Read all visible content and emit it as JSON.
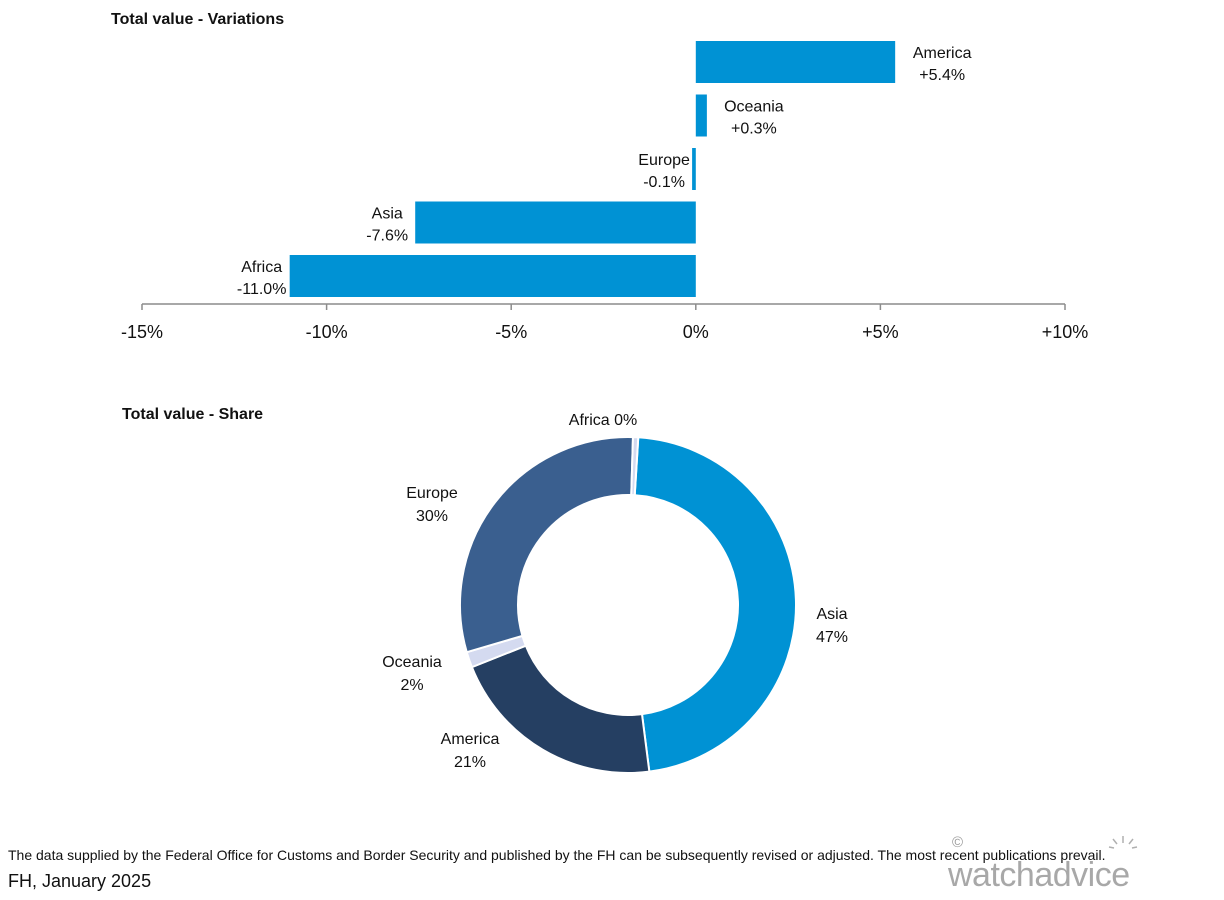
{
  "chart_data": [
    {
      "type": "bar",
      "orientation": "horizontal",
      "title": "Total value - Variations",
      "categories": [
        "America",
        "Oceania",
        "Europe",
        "Asia",
        "Africa"
      ],
      "values": [
        5.4,
        0.3,
        -0.1,
        -7.6,
        -11.0
      ],
      "value_labels": [
        "+5.4%",
        "+0.3%",
        "-0.1%",
        "-7.6%",
        "-11.0%"
      ],
      "xlim": [
        -15,
        10
      ],
      "x_ticks": [
        -15,
        -10,
        -5,
        0,
        5,
        10
      ],
      "x_tick_labels": [
        "-15%",
        "-10%",
        "-5%",
        "0%",
        "+5%",
        "+10%"
      ],
      "grid": false,
      "legend": "none",
      "color": "#0092D4"
    },
    {
      "type": "pie",
      "style": "donut",
      "title": "Total value - Share",
      "slices": [
        {
          "label": "Asia",
          "value": 47,
          "value_label": "47%",
          "color": "#0092D4"
        },
        {
          "label": "America",
          "value": 21,
          "value_label": "21%",
          "color": "#253F62"
        },
        {
          "label": "Oceania",
          "value": 1.5,
          "value_label": "2%",
          "color": "#D4DAF0"
        },
        {
          "label": "Europe",
          "value": 30,
          "value_label": "30%",
          "color": "#3A5F8F"
        },
        {
          "label": "Africa",
          "value": 0.5,
          "value_label": "0%",
          "color": "#D4DAF0"
        }
      ],
      "legend": "none"
    }
  ],
  "footer": {
    "note": "The data supplied by the Federal Office for Customs and Border Security and published by the FH can be subsequently revised or adjusted. The most recent publications prevail.",
    "date": "FH, January 2025"
  },
  "brand": {
    "logo_text": "watchadvice",
    "copyright_mark": "©"
  }
}
